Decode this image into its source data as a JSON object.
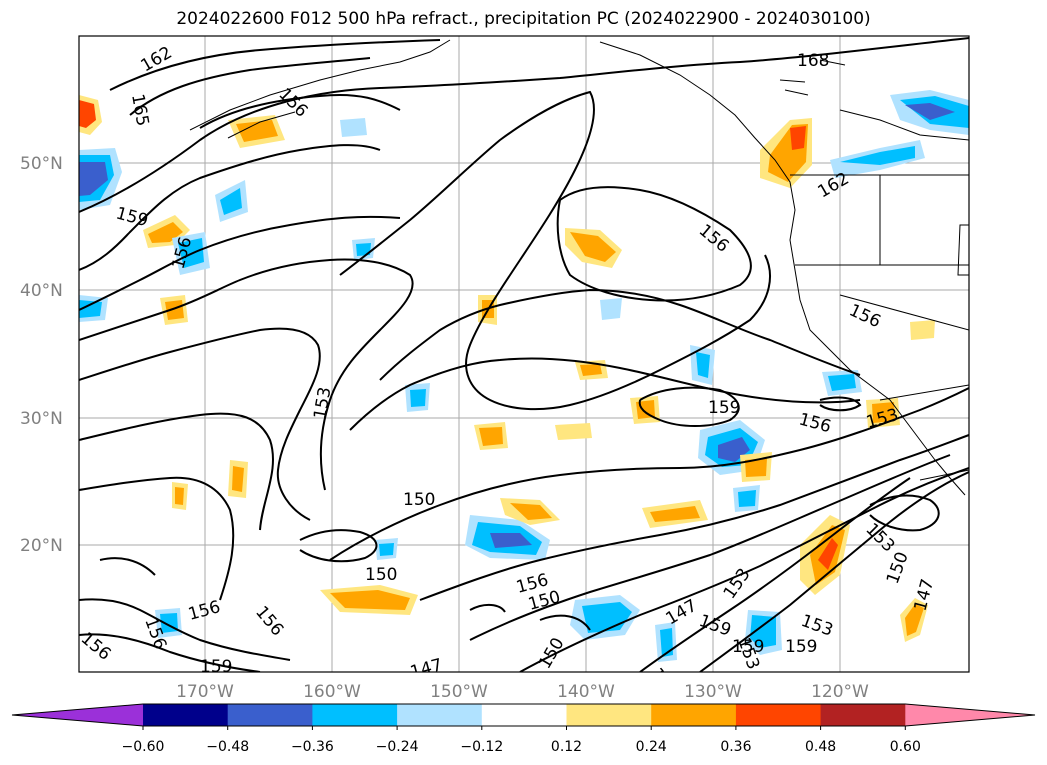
{
  "title": "2024022600 F012 500 hPa refract., precipitation PC (2024022900 - 2024030100)",
  "map": {
    "lat_labels": [
      "50°N",
      "40°N",
      "30°N",
      "20°N"
    ],
    "lon_labels": [
      "170°W",
      "160°W",
      "150°W",
      "140°W",
      "130°W",
      "120°W"
    ],
    "contour_labels": [
      "162",
      "165",
      "156",
      "159",
      "156",
      "168",
      "156",
      "162",
      "156",
      "153",
      "150",
      "150",
      "156",
      "150",
      "156",
      "156",
      "159",
      "156",
      "153",
      "153",
      "159",
      "153",
      "147",
      "150",
      "159",
      "153",
      "147",
      "147",
      "150",
      "159",
      "159",
      "156",
      "156",
      "159",
      "153"
    ]
  },
  "colorbar": {
    "tick_labels": [
      "−0.60",
      "−0.48",
      "−0.36",
      "−0.24",
      "−0.12",
      "0.12",
      "0.24",
      "0.36",
      "0.48",
      "0.60"
    ],
    "colors": [
      "#9b30d9",
      "#00008b",
      "#3a5fcd",
      "#00bfff",
      "#b0e2ff",
      "#ffffff",
      "#ffe680",
      "#ffa500",
      "#ff4500",
      "#b22222",
      "#ff88aa"
    ]
  }
}
